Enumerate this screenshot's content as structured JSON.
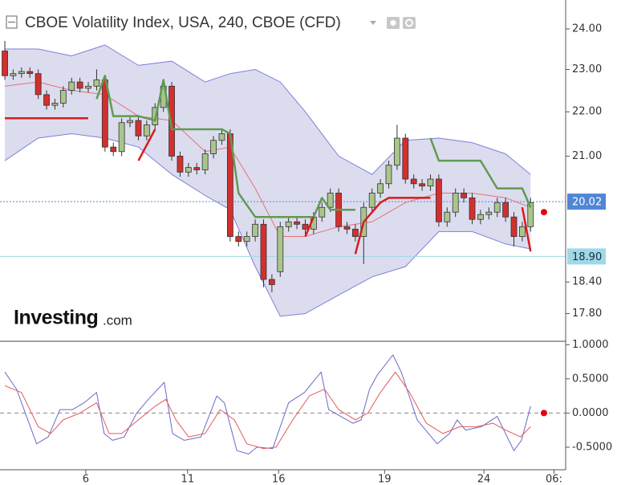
{
  "chart_data": [
    {
      "type": "candlestick",
      "title": "CBOE Volatility Index, USA, 240, CBOE (CFD)",
      "logo": {
        "brand": "Investing",
        "suffix": ".com"
      },
      "log_scale": true,
      "xlim": [
        -0.58,
        67.2
      ],
      "ylim": [
        17.29,
        24.74
      ],
      "yticks": [
        {
          "value": 24,
          "label": "24.00"
        },
        {
          "value": 23,
          "label": "23.00"
        },
        {
          "value": 22,
          "label": "22.00"
        },
        {
          "value": 21,
          "label": "21.00"
        },
        {
          "value": 18.4,
          "label": "18.40"
        },
        {
          "value": 17.8,
          "label": "17.80"
        }
      ],
      "candles": {
        "up_color": "#a9c58c",
        "down_color": "#d32f2f",
        "open": [
          23.45,
          22.85,
          22.9,
          22.95,
          22.9,
          22.4,
          22.15,
          22.2,
          22.5,
          22.7,
          22.55,
          22.6,
          22.75,
          21.2,
          21.1,
          21.75,
          21.8,
          21.45,
          21.7,
          22.1,
          22.6,
          21.0,
          20.65,
          20.75,
          20.7,
          21.05,
          21.35,
          21.5,
          19.3,
          19.2,
          19.3,
          19.55,
          18.45,
          18.6,
          19.5,
          19.6,
          19.55,
          19.45,
          19.7,
          19.9,
          20.2,
          19.5,
          19.45,
          19.3,
          19.9,
          20.2,
          20.4,
          20.8,
          21.4,
          20.5,
          20.4,
          20.35,
          20.5,
          19.6,
          19.8,
          20.2,
          20.1,
          19.65,
          19.75,
          19.8,
          20.0,
          19.7,
          19.3,
          19.5
        ],
        "high": [
          23.7,
          23.0,
          23.05,
          23.05,
          23.0,
          22.5,
          22.3,
          22.6,
          22.8,
          22.8,
          22.7,
          23.0,
          22.85,
          21.3,
          21.85,
          21.9,
          21.9,
          21.8,
          22.2,
          22.75,
          22.7,
          21.1,
          20.85,
          20.85,
          21.15,
          21.45,
          21.6,
          21.6,
          19.4,
          19.4,
          19.65,
          19.65,
          18.55,
          19.6,
          19.7,
          19.7,
          19.65,
          19.8,
          20.0,
          20.3,
          20.3,
          19.6,
          19.55,
          20.0,
          20.3,
          20.5,
          20.9,
          21.7,
          21.5,
          20.6,
          20.5,
          20.6,
          20.6,
          19.9,
          20.3,
          20.3,
          20.2,
          19.85,
          19.9,
          20.1,
          20.1,
          19.8,
          19.6,
          20.1
        ],
        "low": [
          22.75,
          22.75,
          22.8,
          22.8,
          22.3,
          22.05,
          22.05,
          22.1,
          22.4,
          22.45,
          22.45,
          22.5,
          21.1,
          21.0,
          21.0,
          21.65,
          21.35,
          21.35,
          21.6,
          22.0,
          20.9,
          20.55,
          20.55,
          20.6,
          20.6,
          20.95,
          21.25,
          19.2,
          19.1,
          19.1,
          19.2,
          18.3,
          18.2,
          18.5,
          19.4,
          19.45,
          19.35,
          19.35,
          19.6,
          19.8,
          19.4,
          19.35,
          19.2,
          18.75,
          19.8,
          20.1,
          20.3,
          20.7,
          20.4,
          20.3,
          20.25,
          20.25,
          19.5,
          19.5,
          19.7,
          20.0,
          19.55,
          19.55,
          19.65,
          19.7,
          19.6,
          19.1,
          19.2,
          19.4
        ],
        "close": [
          22.85,
          22.9,
          22.95,
          22.9,
          22.4,
          22.15,
          22.2,
          22.5,
          22.7,
          22.55,
          22.6,
          22.75,
          21.2,
          21.1,
          21.75,
          21.8,
          21.45,
          21.7,
          22.1,
          22.6,
          21.0,
          20.65,
          20.75,
          20.7,
          21.05,
          21.35,
          21.5,
          19.3,
          19.2,
          19.3,
          19.55,
          18.45,
          18.35,
          19.5,
          19.6,
          19.55,
          19.45,
          19.7,
          19.9,
          20.2,
          19.5,
          19.45,
          19.3,
          19.9,
          20.2,
          20.4,
          20.8,
          21.4,
          20.5,
          20.4,
          20.35,
          20.5,
          19.6,
          19.8,
          20.2,
          20.1,
          19.65,
          19.75,
          19.8,
          20.0,
          19.7,
          19.3,
          19.5,
          20.0
        ]
      },
      "band": {
        "fill": "#dcdcef",
        "stroke": "#7f7fdc",
        "x": [
          0,
          4,
          8,
          12,
          16,
          20,
          24,
          27,
          30,
          33,
          36,
          40,
          44,
          48,
          52,
          56,
          60,
          63
        ],
        "upper": [
          23.5,
          23.5,
          23.33,
          23.6,
          23.1,
          23.2,
          22.7,
          22.9,
          23.0,
          22.7,
          22.0,
          21.0,
          20.6,
          21.35,
          21.4,
          21.3,
          21.05,
          20.6
        ],
        "lower": [
          20.9,
          21.4,
          21.5,
          21.4,
          21.2,
          20.6,
          20.15,
          19.85,
          18.7,
          17.75,
          17.8,
          18.15,
          18.5,
          18.7,
          19.4,
          19.4,
          19.15,
          19.05
        ]
      },
      "middle": {
        "color": "#e57373",
        "x": [
          0,
          4,
          8,
          12,
          16,
          20,
          24,
          27,
          30,
          33,
          36,
          40,
          44,
          48,
          52,
          56,
          60,
          63
        ],
        "values": [
          22.6,
          22.7,
          22.5,
          22.4,
          21.9,
          21.8,
          21.1,
          21.2,
          20.3,
          19.3,
          19.3,
          19.5,
          19.6,
          20.0,
          20.2,
          20.2,
          20.1,
          19.9
        ]
      },
      "trend_up": {
        "color": "#5f9a52",
        "x": [
          11,
          12,
          13,
          16,
          18,
          19,
          20,
          26,
          27,
          28,
          30,
          37,
          38,
          39,
          42,
          43,
          51,
          52,
          57,
          59,
          62,
          63
        ],
        "values": [
          22.3,
          22.85,
          21.9,
          21.9,
          21.8,
          22.75,
          21.6,
          21.6,
          21.5,
          20.2,
          19.7,
          19.7,
          20.1,
          19.85,
          19.85,
          null,
          21.4,
          20.9,
          20.9,
          20.3,
          20.3,
          19.9
        ]
      },
      "trend_down": {
        "color": "#d81b1b",
        "x": [
          0,
          10,
          11,
          16,
          18,
          19,
          36,
          37,
          38,
          42,
          43,
          45,
          46,
          51,
          52,
          62,
          63
        ],
        "values": [
          21.85,
          21.85,
          null,
          20.9,
          21.6,
          null,
          19.3,
          19.7,
          null,
          18.95,
          19.6,
          20.0,
          20.1,
          20.1,
          null,
          19.9,
          19.0
        ]
      },
      "price_lines": [
        {
          "value": 20.02,
          "label": "20.02",
          "color": "#4f86d6",
          "text_color": "#ffffff",
          "dashed": true
        },
        {
          "value": 18.9,
          "label": "18.90",
          "color": "#9fd8e6",
          "text_color": "#1a2a3a",
          "dashed": false
        }
      ],
      "marker": {
        "x": 64.6,
        "value": 19.8,
        "color": "#e8000f"
      }
    },
    {
      "type": "line",
      "xlim": [
        -0.58,
        67.2
      ],
      "xticks": [
        {
          "value": 9.7,
          "label": "6"
        },
        {
          "value": 21.9,
          "label": "11"
        },
        {
          "value": 32.8,
          "label": "16"
        },
        {
          "value": 45.5,
          "label": "19"
        },
        {
          "value": 57.4,
          "label": "24"
        },
        {
          "value": 65.8,
          "label": "06:"
        }
      ],
      "ylim": [
        -0.83,
        1.05
      ],
      "yticks": [
        {
          "value": 1,
          "label": "1.0000"
        },
        {
          "value": 0.5,
          "label": "0.5000"
        },
        {
          "value": 0,
          "label": "0.0000"
        },
        {
          "value": -0.5,
          "label": "-0.5000"
        }
      ],
      "zero_line": 0,
      "series": [
        {
          "color": "#6a6ac6",
          "x": [
            0,
            1.4,
            3.8,
            5.2,
            6.6,
            8.1,
            9.5,
            11,
            11.9,
            12.9,
            14.3,
            15.8,
            17.2,
            19.1,
            20.1,
            21.5,
            23.5,
            25.4,
            26.3,
            27.8,
            29.2,
            30.2,
            32.1,
            34,
            35.9,
            37.9,
            38.8,
            41.7,
            42.7,
            43.7,
            44.6,
            46.5,
            47.5,
            49.4,
            51.8,
            53.3,
            54.2,
            55.2,
            57.1,
            59,
            61,
            61.9,
            63
          ],
          "values": [
            0.6,
            0.35,
            -0.45,
            -0.35,
            0.05,
            0.05,
            0.15,
            0.3,
            -0.3,
            -0.4,
            -0.35,
            0.0,
            0.2,
            0.45,
            -0.3,
            -0.4,
            -0.35,
            0.25,
            0.15,
            -0.55,
            -0.6,
            -0.5,
            -0.52,
            0.15,
            0.3,
            0.6,
            0.05,
            -0.15,
            -0.1,
            0.35,
            0.55,
            0.85,
            0.6,
            -0.1,
            -0.45,
            -0.3,
            -0.1,
            -0.25,
            -0.2,
            -0.05,
            -0.55,
            -0.4,
            0.1
          ]
        },
        {
          "color": "#e35a5a",
          "x": [
            0,
            2,
            4,
            5.5,
            7,
            9,
            11,
            12.5,
            14,
            16,
            18,
            19.3,
            20.5,
            22,
            24,
            25.8,
            27.5,
            29,
            31,
            32.5,
            34.5,
            36.5,
            38.3,
            40,
            42,
            43.5,
            45,
            46.8,
            48.5,
            50.5,
            52.5,
            54.5,
            56.5,
            58.5,
            60,
            61.8,
            63
          ],
          "values": [
            0.4,
            0.3,
            -0.2,
            -0.3,
            -0.1,
            0.0,
            0.15,
            -0.3,
            -0.3,
            -0.1,
            0.1,
            0.2,
            -0.1,
            -0.35,
            -0.3,
            0.05,
            -0.1,
            -0.45,
            -0.52,
            -0.5,
            -0.1,
            0.25,
            0.35,
            0.05,
            -0.1,
            0.0,
            0.3,
            0.6,
            0.3,
            -0.15,
            -0.3,
            -0.2,
            -0.2,
            -0.15,
            -0.25,
            -0.35,
            -0.2
          ]
        }
      ],
      "marker": {
        "x": 64.6,
        "value": 0,
        "color": "#e8000f"
      }
    }
  ]
}
